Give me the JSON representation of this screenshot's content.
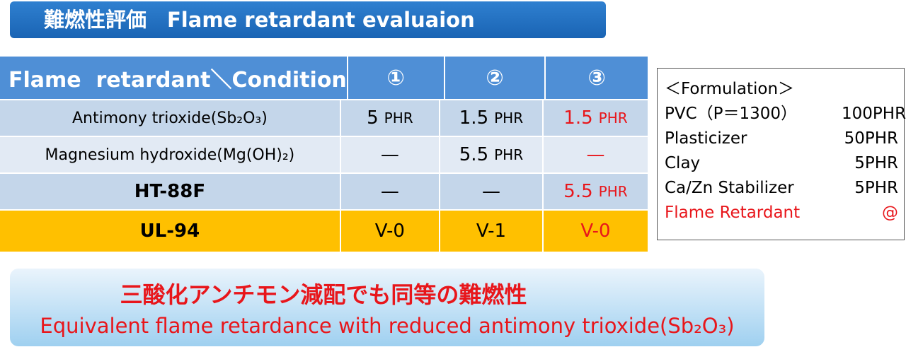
{
  "title": "難燃性評価　Flame retardant evaluaion",
  "table": {
    "header": [
      "Flame  retardant＼Condition",
      "①",
      "②",
      "③"
    ],
    "rows": [
      {
        "label": "Antimony trioxide(Sb₂O₃)",
        "cells": [
          {
            "amount": "5",
            "unit": "PHR"
          },
          {
            "amount": "1.5",
            "unit": "PHR"
          },
          {
            "amount": "1.5",
            "unit": "PHR"
          }
        ]
      },
      {
        "label": "Magnesium hydroxide(Mg(OH)₂)",
        "cells": [
          {
            "amount": "—"
          },
          {
            "amount": "5.5",
            "unit": "PHR"
          },
          {
            "amount": "—"
          }
        ]
      },
      {
        "label": "HT-88F",
        "cells": [
          {
            "amount": "—"
          },
          {
            "amount": "—"
          },
          {
            "amount": "5.5",
            "unit": "PHR"
          }
        ]
      },
      {
        "label": "UL-94",
        "cells": [
          {
            "amount": "V-0"
          },
          {
            "amount": "V-1"
          },
          {
            "amount": "V-0"
          }
        ]
      }
    ]
  },
  "formulation": {
    "heading": "＜Formulation＞",
    "items": [
      {
        "name": "PVC（P＝1300）",
        "amount": "100PHR"
      },
      {
        "name": "Plasticizer",
        "amount": "50PHR"
      },
      {
        "name": "Clay",
        "amount": "5PHR"
      },
      {
        "name": "Ca/Zn Stabilizer",
        "amount": "5PHR"
      },
      {
        "name": "Flame Retardant",
        "amount": "@"
      }
    ]
  },
  "conclusion": {
    "japanese": "三酸化アンチモン減配でも同等の難燃性",
    "english": "Equivalent flame retardance with reduced antimony trioxide(Sb₂O₃)"
  }
}
